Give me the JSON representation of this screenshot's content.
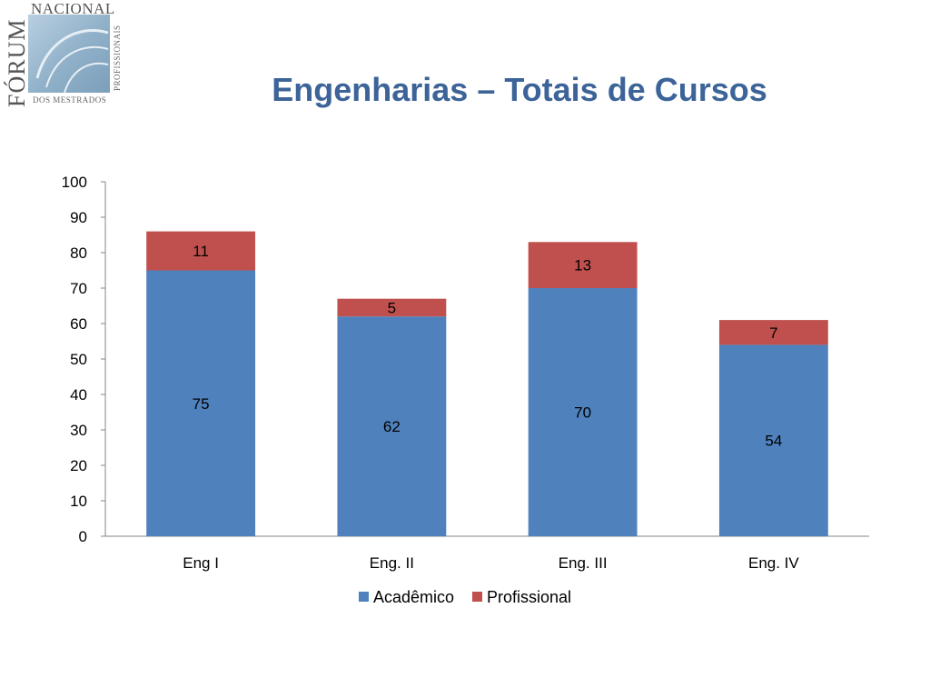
{
  "logo": {
    "name": "NACIONAL",
    "vertical": "FÓRUM",
    "side": "PROFISSIONAIS",
    "bottom": "DOS MESTRADOS"
  },
  "title": "Engenharias – Totais de Cursos",
  "colors": {
    "academico": "#4f81bd",
    "profissional": "#c0504d",
    "title": "#3c6499"
  },
  "chart_data": {
    "type": "bar",
    "stacked": true,
    "categories": [
      "Eng I",
      "Eng. II",
      "Eng. III",
      "Eng. IV"
    ],
    "series": [
      {
        "name": "Acadêmico",
        "values": [
          75,
          62,
          70,
          54
        ]
      },
      {
        "name": "Profissional",
        "values": [
          11,
          5,
          13,
          7
        ]
      }
    ],
    "ylim": [
      0,
      100
    ],
    "yticks": [
      0,
      10,
      20,
      30,
      40,
      50,
      60,
      70,
      80,
      90,
      100
    ],
    "grid": false,
    "legend": "bottom"
  }
}
